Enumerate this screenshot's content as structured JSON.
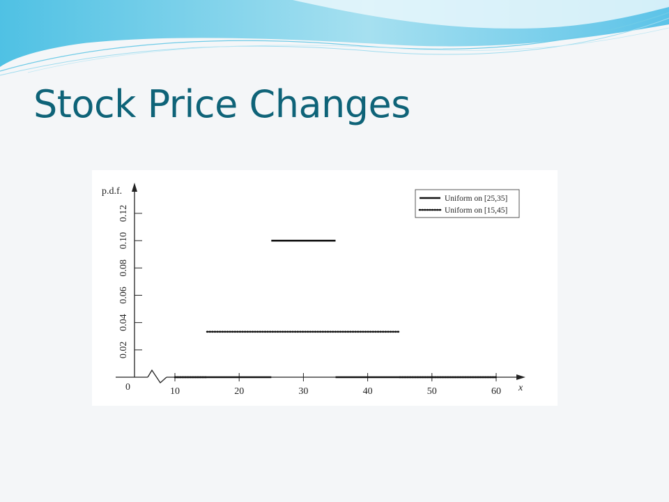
{
  "slide": {
    "title": "Stock Price Changes",
    "colors": {
      "title": "#0e6378",
      "wave_primary": "#5cc6e6",
      "wave_secondary": "#9fdcef",
      "background": "#f4f6f8"
    }
  },
  "chart_data": {
    "type": "line",
    "title": "",
    "xlabel": "x",
    "ylabel": "p.d.f.",
    "xlim": [
      10,
      60
    ],
    "ylim": [
      0,
      0.12
    ],
    "x_ticks": [
      10,
      20,
      30,
      40,
      50,
      60
    ],
    "x_tick_labels": [
      "10",
      "20",
      "30",
      "40",
      "50",
      "60"
    ],
    "y_ticks": [
      0.02,
      0.04,
      0.06,
      0.08,
      0.1,
      0.12
    ],
    "y_tick_labels": [
      "0.02",
      "0.04",
      "0.06",
      "0.08",
      "0.10",
      "0.12"
    ],
    "origin_label": "0",
    "axis_break": true,
    "grid": false,
    "legend_position": "top-right",
    "series": [
      {
        "name": "Uniform on [25,35]",
        "style": "solid",
        "segments": [
          {
            "x": [
              10,
              25
            ],
            "y": [
              0,
              0
            ]
          },
          {
            "x": [
              25,
              35
            ],
            "y": [
              0.1,
              0.1
            ]
          },
          {
            "x": [
              35,
              60
            ],
            "y": [
              0,
              0
            ]
          }
        ]
      },
      {
        "name": "Uniform on [15,45]",
        "style": "dotted",
        "segments": [
          {
            "x": [
              10,
              15
            ],
            "y": [
              0,
              0
            ]
          },
          {
            "x": [
              15,
              45
            ],
            "y": [
              0.0333,
              0.0333
            ]
          },
          {
            "x": [
              45,
              60
            ],
            "y": [
              0,
              0
            ]
          }
        ]
      }
    ]
  }
}
